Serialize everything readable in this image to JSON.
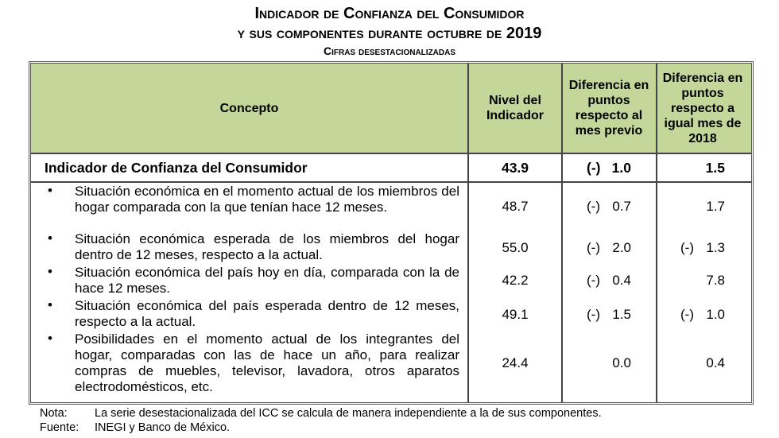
{
  "title": {
    "line1": "Indicador de Confianza del Consumidor",
    "line2": "y sus componentes durante octubre de 2019",
    "subtitle": "Cifras desestacionalizadas"
  },
  "headers": [
    "Concepto",
    "Nivel del Indicador",
    "Diferencia en puntos respecto al mes previo",
    "Diferencia en puntos respecto a igual mes de 2018"
  ],
  "icc": {
    "label": "Indicador de Confianza del Consumidor",
    "nivel": "43.9",
    "prev_sign": "(-)",
    "prev": "1.0",
    "year_sign": "",
    "year": "1.5"
  },
  "rows": [
    {
      "label": "Situación económica en el momento actual de los miembros del hogar comparada con la que tenían hace 12 meses.",
      "nivel": "48.7",
      "prev_sign": "(-)",
      "prev": "0.7",
      "year_sign": "",
      "year": "1.7"
    },
    {
      "label": "Situación económica esperada de los miembros del hogar dentro de 12 meses, respecto a la actual.",
      "nivel": "55.0",
      "prev_sign": "(-)",
      "prev": "2.0",
      "year_sign": "(-)",
      "year": "1.3"
    },
    {
      "label": "Situación económica del país hoy en día, comparada con la de hace 12 meses.",
      "nivel": "42.2",
      "prev_sign": "(-)",
      "prev": "0.4",
      "year_sign": "",
      "year": "7.8"
    },
    {
      "label": "Situación económica del país esperada dentro de 12 meses, respecto a la actual.",
      "nivel": "49.1",
      "prev_sign": "(-)",
      "prev": "1.5",
      "year_sign": "(-)",
      "year": "1.0"
    },
    {
      "label": "Posibilidades en el momento actual de los integrantes del hogar, comparadas con las de hace un año, para realizar compras de muebles, televisor, lavadora, otros aparatos electrodomésticos, etc.",
      "nivel": "24.4",
      "prev_sign": "",
      "prev": "0.0",
      "year_sign": "",
      "year": "0.4"
    }
  ],
  "notes": {
    "nota_label": "Nota:",
    "nota": "La serie desestacionalizada del ICC se calcula de manera independiente a la de sus componentes.",
    "fuente_label": "Fuente:",
    "fuente": "INEGI y Banco de México."
  },
  "colors": {
    "header_bg": "#c4d79b"
  }
}
